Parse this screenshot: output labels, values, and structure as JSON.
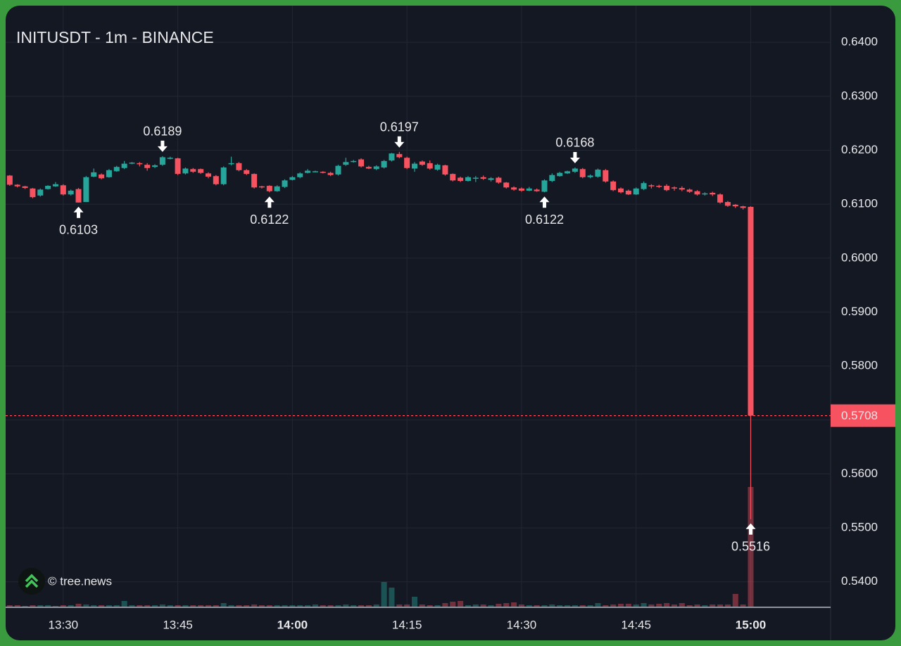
{
  "chart_data": {
    "type": "candlestick",
    "title": "INITUSDT - 1m - BINANCE",
    "watermark": "© tree.news",
    "x": [
      "13:23",
      "13:24",
      "13:25",
      "13:26",
      "13:27",
      "13:28",
      "13:29",
      "13:30",
      "13:31",
      "13:32",
      "13:33",
      "13:34",
      "13:35",
      "13:36",
      "13:37",
      "13:38",
      "13:39",
      "13:40",
      "13:41",
      "13:42",
      "13:43",
      "13:44",
      "13:45",
      "13:46",
      "13:47",
      "13:48",
      "13:49",
      "13:50",
      "13:51",
      "13:52",
      "13:53",
      "13:54",
      "13:55",
      "13:56",
      "13:57",
      "13:58",
      "13:59",
      "14:00",
      "14:01",
      "14:02",
      "14:03",
      "14:04",
      "14:05",
      "14:06",
      "14:07",
      "14:08",
      "14:09",
      "14:10",
      "14:11",
      "14:12",
      "14:13",
      "14:14",
      "14:15",
      "14:16",
      "14:17",
      "14:18",
      "14:19",
      "14:20",
      "14:21",
      "14:22",
      "14:23",
      "14:24",
      "14:25",
      "14:26",
      "14:27",
      "14:28",
      "14:29",
      "14:30",
      "14:31",
      "14:32",
      "14:33",
      "14:34",
      "14:35",
      "14:36",
      "14:37",
      "14:38",
      "14:39",
      "14:40",
      "14:41",
      "14:42",
      "14:43",
      "14:44",
      "14:45",
      "14:46",
      "14:47",
      "14:48",
      "14:49",
      "14:50",
      "14:51",
      "14:52",
      "14:53",
      "14:54",
      "14:55",
      "14:56",
      "14:57",
      "14:58",
      "14:59",
      "15:00"
    ],
    "open": [
      0.6153,
      0.6136,
      0.6133,
      0.6129,
      0.6116,
      0.6128,
      0.6133,
      0.6135,
      0.6118,
      0.6128,
      0.6104,
      0.6151,
      0.6155,
      0.615,
      0.6161,
      0.6167,
      0.6175,
      0.6176,
      0.6173,
      0.6169,
      0.6173,
      0.6184,
      0.6185,
      0.6157,
      0.6165,
      0.6165,
      0.6157,
      0.6152,
      0.6137,
      0.6174,
      0.6176,
      0.6163,
      0.6156,
      0.6133,
      0.6134,
      0.6124,
      0.6132,
      0.6145,
      0.615,
      0.6158,
      0.616,
      0.616,
      0.6158,
      0.6155,
      0.6173,
      0.6178,
      0.6183,
      0.6169,
      0.6165,
      0.6168,
      0.6181,
      0.6193,
      0.6186,
      0.6166,
      0.6179,
      0.6176,
      0.6164,
      0.6172,
      0.6156,
      0.6149,
      0.6143,
      0.6148,
      0.615,
      0.6145,
      0.6149,
      0.614,
      0.6131,
      0.6129,
      0.6125,
      0.6127,
      0.6123,
      0.6143,
      0.6152,
      0.6157,
      0.616,
      0.6165,
      0.615,
      0.6151,
      0.6163,
      0.6142,
      0.6129,
      0.6125,
      0.6118,
      0.6128,
      0.6135,
      0.6134,
      0.6134,
      0.6131,
      0.613,
      0.6127,
      0.6124,
      0.6118,
      0.6121,
      0.6118,
      0.6104,
      0.6099,
      0.6096,
      0.6095
    ],
    "high": [
      0.6154,
      0.6137,
      0.6134,
      0.613,
      0.6129,
      0.6135,
      0.6141,
      0.6137,
      0.6127,
      0.613,
      0.6152,
      0.6166,
      0.6157,
      0.6165,
      0.6171,
      0.618,
      0.6178,
      0.6178,
      0.6176,
      0.6174,
      0.6189,
      0.6188,
      0.6186,
      0.6168,
      0.6167,
      0.6166,
      0.6159,
      0.6154,
      0.617,
      0.6188,
      0.6178,
      0.6165,
      0.6157,
      0.6134,
      0.6135,
      0.6135,
      0.6146,
      0.6152,
      0.6159,
      0.6165,
      0.6162,
      0.6161,
      0.616,
      0.6173,
      0.6186,
      0.6182,
      0.6185,
      0.6171,
      0.6172,
      0.6182,
      0.6195,
      0.6197,
      0.6188,
      0.6178,
      0.6181,
      0.6181,
      0.6175,
      0.6173,
      0.6157,
      0.6151,
      0.6152,
      0.6152,
      0.6153,
      0.615,
      0.6151,
      0.6141,
      0.6133,
      0.6131,
      0.6132,
      0.6129,
      0.6146,
      0.6157,
      0.616,
      0.6162,
      0.6168,
      0.6167,
      0.6155,
      0.6166,
      0.6165,
      0.6144,
      0.6131,
      0.6127,
      0.6131,
      0.6142,
      0.6137,
      0.6136,
      0.6137,
      0.6133,
      0.6133,
      0.6129,
      0.6126,
      0.6122,
      0.6123,
      0.612,
      0.6106,
      0.61,
      0.6097,
      0.6096
    ],
    "low": [
      0.6134,
      0.6131,
      0.6128,
      0.6111,
      0.6114,
      0.6127,
      0.6132,
      0.6116,
      0.6116,
      0.6103,
      0.6104,
      0.615,
      0.6146,
      0.6149,
      0.616,
      0.6165,
      0.6174,
      0.617,
      0.6162,
      0.6167,
      0.6171,
      0.6183,
      0.6154,
      0.6155,
      0.6158,
      0.6156,
      0.6148,
      0.6135,
      0.6135,
      0.6172,
      0.6161,
      0.6154,
      0.6129,
      0.6129,
      0.6122,
      0.6123,
      0.613,
      0.6144,
      0.6148,
      0.6157,
      0.6159,
      0.6157,
      0.6152,
      0.6153,
      0.6171,
      0.6177,
      0.6168,
      0.6165,
      0.6163,
      0.6166,
      0.6179,
      0.6185,
      0.6165,
      0.616,
      0.6171,
      0.6164,
      0.6162,
      0.6153,
      0.6142,
      0.6141,
      0.6142,
      0.6141,
      0.6145,
      0.6142,
      0.6138,
      0.6129,
      0.6125,
      0.6123,
      0.6124,
      0.6123,
      0.6122,
      0.6141,
      0.6151,
      0.6156,
      0.6158,
      0.6148,
      0.6148,
      0.6149,
      0.614,
      0.6124,
      0.612,
      0.6117,
      0.6117,
      0.6126,
      0.6129,
      0.613,
      0.6124,
      0.6125,
      0.6124,
      0.6121,
      0.6116,
      0.6116,
      0.6115,
      0.6101,
      0.6095,
      0.6093,
      0.609,
      0.5516
    ],
    "close": [
      0.6136,
      0.6133,
      0.613,
      0.6113,
      0.6127,
      0.6134,
      0.6137,
      0.6118,
      0.6125,
      0.6103,
      0.615,
      0.6159,
      0.6148,
      0.6163,
      0.6169,
      0.6175,
      0.6177,
      0.6174,
      0.6167,
      0.6172,
      0.6187,
      0.6186,
      0.6156,
      0.6166,
      0.616,
      0.6158,
      0.6151,
      0.6137,
      0.6168,
      0.6176,
      0.6163,
      0.6156,
      0.6131,
      0.6131,
      0.6124,
      0.6133,
      0.6144,
      0.615,
      0.6157,
      0.6162,
      0.6161,
      0.6158,
      0.6154,
      0.6171,
      0.6178,
      0.618,
      0.617,
      0.6166,
      0.617,
      0.618,
      0.6194,
      0.6187,
      0.6167,
      0.6175,
      0.6173,
      0.6166,
      0.6173,
      0.6155,
      0.6144,
      0.6143,
      0.615,
      0.6149,
      0.6147,
      0.6148,
      0.614,
      0.6131,
      0.6127,
      0.6125,
      0.6129,
      0.6124,
      0.6144,
      0.6154,
      0.6158,
      0.6161,
      0.6166,
      0.615,
      0.6153,
      0.6164,
      0.6142,
      0.6126,
      0.6122,
      0.6118,
      0.6129,
      0.6139,
      0.6133,
      0.6132,
      0.6126,
      0.6129,
      0.6127,
      0.6123,
      0.6118,
      0.612,
      0.6118,
      0.6103,
      0.6097,
      0.6096,
      0.6093,
      0.5708
    ],
    "volume": [
      2,
      2,
      1,
      2,
      2,
      2,
      1,
      2,
      2,
      4,
      3,
      2,
      2,
      2,
      2,
      8,
      2,
      2,
      2,
      2,
      3,
      2,
      2,
      2,
      2,
      2,
      2,
      2,
      5,
      2,
      2,
      2,
      3,
      2,
      2,
      2,
      2,
      2,
      2,
      2,
      3,
      2,
      2,
      2,
      3,
      2,
      2,
      2,
      3,
      35,
      27,
      3,
      3,
      14,
      3,
      2,
      2,
      5,
      7,
      8,
      2,
      3,
      3,
      2,
      4,
      5,
      6,
      3,
      2,
      2,
      2,
      3,
      2,
      2,
      2,
      2,
      2,
      5,
      2,
      3,
      4,
      4,
      3,
      5,
      3,
      4,
      5,
      3,
      5,
      2,
      3,
      2,
      3,
      3,
      3,
      18,
      3,
      170
    ],
    "up_color": "#26a69a",
    "down_color": "#f7525f",
    "ylim": [
      0.5354,
      0.6468
    ],
    "yticks": [
      {
        "value": 0.54,
        "label": "0.5400"
      },
      {
        "value": 0.55,
        "label": "0.5500"
      },
      {
        "value": 0.56,
        "label": "0.5600"
      },
      {
        "value": 0.57,
        "label": "0.5700"
      },
      {
        "value": 0.58,
        "label": "0.5800"
      },
      {
        "value": 0.59,
        "label": "0.5900"
      },
      {
        "value": 0.6,
        "label": "0.6000"
      },
      {
        "value": 0.61,
        "label": "0.6100"
      },
      {
        "value": 0.62,
        "label": "0.6200"
      },
      {
        "value": 0.63,
        "label": "0.6300"
      },
      {
        "value": 0.64,
        "label": "0.6400"
      }
    ],
    "xlim": [
      "13:22",
      "15:10"
    ],
    "xticks": [
      "13:30",
      "13:45",
      "14:00",
      "14:15",
      "14:30",
      "14:45",
      "15:00"
    ],
    "xticks_bold": [
      false,
      false,
      true,
      false,
      false,
      false,
      true
    ],
    "grid": true,
    "last_price": 0.5708,
    "annotations": [
      {
        "x": "13:32",
        "value": 0.6103,
        "direction": "up"
      },
      {
        "x": "13:43",
        "value": 0.6189,
        "direction": "down"
      },
      {
        "x": "13:57",
        "value": 0.6122,
        "direction": "up"
      },
      {
        "x": "14:14",
        "value": 0.6197,
        "direction": "down"
      },
      {
        "x": "14:33",
        "value": 0.6122,
        "direction": "up"
      },
      {
        "x": "14:37",
        "value": 0.6168,
        "direction": "down"
      },
      {
        "x": "15:00",
        "value": 0.5516,
        "direction": "up"
      }
    ]
  }
}
